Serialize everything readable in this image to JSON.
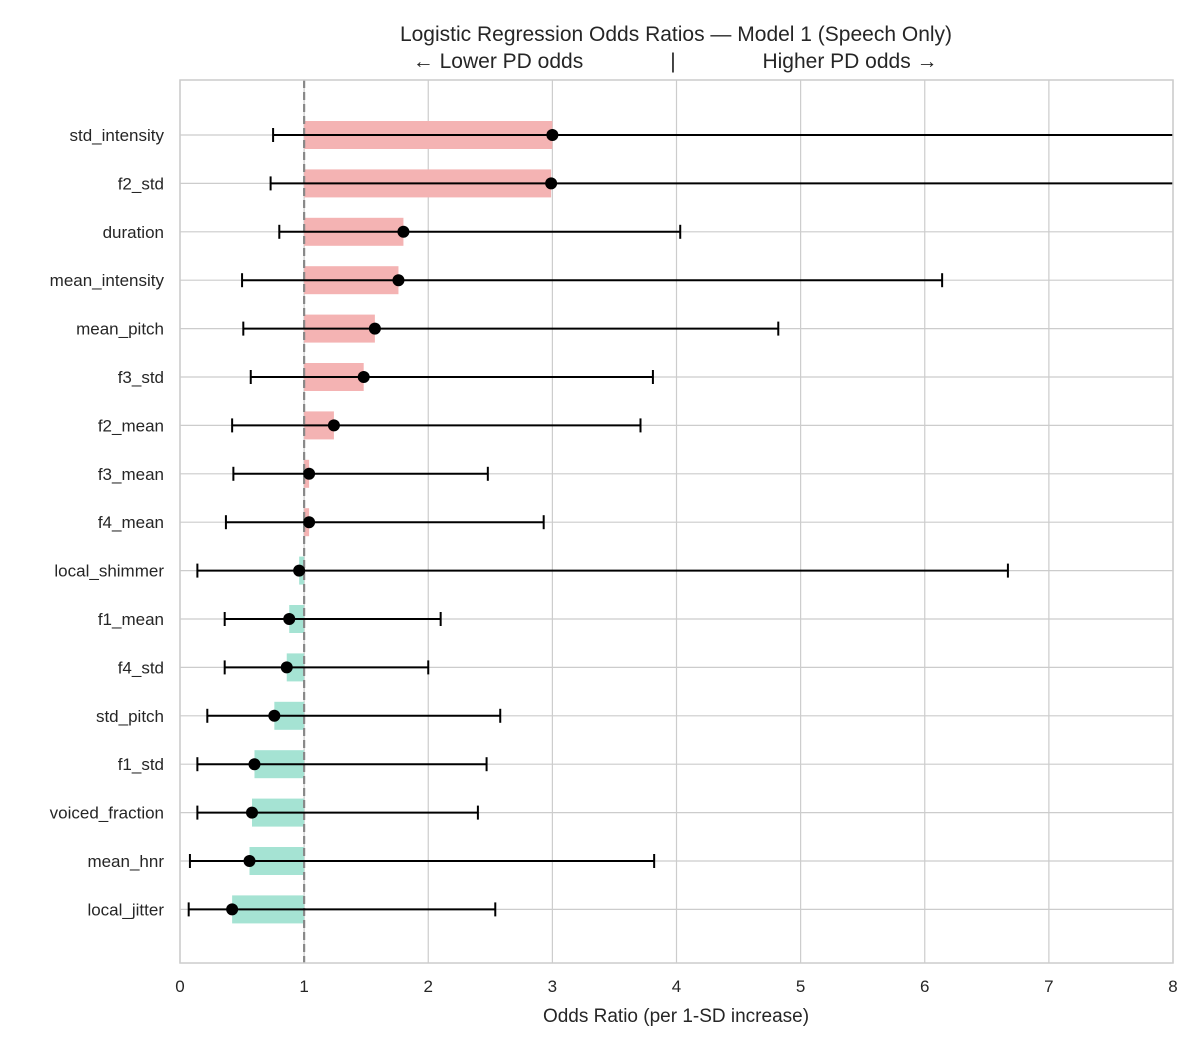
{
  "chart_data": {
    "type": "bar",
    "orientation": "horizontal",
    "title": "Logistic Regression Odds Ratios — Model 1 (Speech Only)",
    "subtitle": {
      "left": "← Lower PD odds",
      "separator": "|",
      "right": "Higher PD odds →"
    },
    "xlabel": "Odds Ratio (per 1-SD increase)",
    "ylabel": "",
    "xlim": [
      0,
      8
    ],
    "xticks": [
      "0",
      "1",
      "2",
      "3",
      "4",
      "5",
      "6",
      "7",
      "8"
    ],
    "reference_line": 1,
    "grid": true,
    "colors": {
      "increase": "#f4b3b3",
      "decrease": "#a5e3d3",
      "point": "#000000",
      "reference": "#888888",
      "grid": "#cccccc",
      "frame": "#cccccc"
    },
    "categories": [
      "std_intensity",
      "f2_std",
      "duration",
      "mean_intensity",
      "mean_pitch",
      "f3_std",
      "f2_mean",
      "f3_mean",
      "f4_mean",
      "local_shimmer",
      "f1_mean",
      "f4_std",
      "std_pitch",
      "f1_std",
      "voiced_fraction",
      "mean_hnr",
      "local_jitter"
    ],
    "odds_ratio": [
      3.0,
      2.99,
      1.8,
      1.76,
      1.57,
      1.48,
      1.24,
      1.04,
      1.04,
      0.96,
      0.88,
      0.86,
      0.76,
      0.6,
      0.58,
      0.56,
      0.42
    ],
    "ci_low": [
      0.75,
      0.73,
      0.8,
      0.5,
      0.51,
      0.57,
      0.42,
      0.43,
      0.37,
      0.14,
      0.36,
      0.36,
      0.22,
      0.14,
      0.14,
      0.08,
      0.07
    ],
    "ci_high": [
      8.0,
      8.0,
      4.03,
      6.14,
      4.82,
      3.81,
      3.71,
      2.48,
      2.93,
      6.67,
      2.1,
      2.0,
      2.58,
      2.47,
      2.4,
      3.82,
      2.54
    ]
  }
}
